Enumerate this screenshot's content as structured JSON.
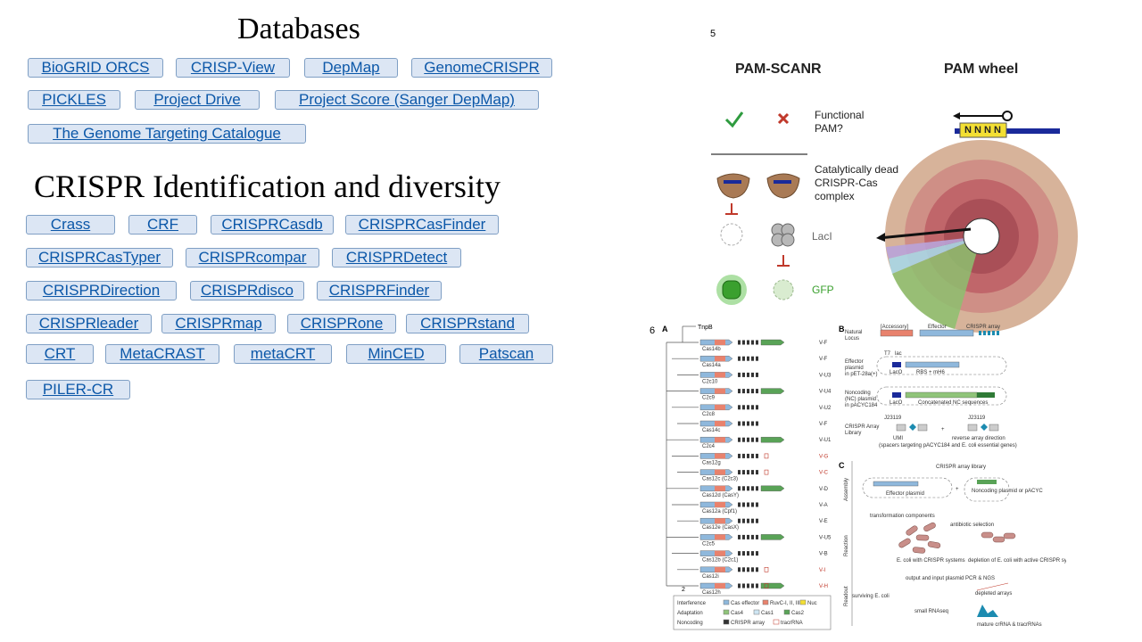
{
  "databases": {
    "title": "Databases",
    "links": [
      "BioGRID ORCS",
      "CRISP-View",
      "DepMap",
      "GenomeCRISPR",
      "PICKLES",
      "Project Drive",
      "Project Score (Sanger DepMap)",
      "The Genome Targeting Catalogue"
    ]
  },
  "crispr": {
    "title": "CRISPR Identification and diversity",
    "links": [
      "Crass",
      "CRF",
      "CRISPRCasdb",
      "CRISPRCasFinder",
      "CRISPRCasTyper",
      "CRISPRcompar",
      "CRISPRDetect",
      "CRISPRDirection",
      "CRISPRdisco",
      "CRISPRFinder",
      "CRISPRleader",
      "CRISPRmap",
      "CRISPRone",
      "CRISPRstand",
      "CRT",
      "MetaCRAST",
      "metaCRT",
      "MinCED",
      "Patscan",
      "PILER-CR"
    ]
  },
  "figure5": {
    "number": "5",
    "left_title": "PAM-SCANR",
    "right_title": "PAM wheel",
    "functional": "Functional\nPAM?",
    "dead": "Catalytically dead\nCRISPR-Cas\ncomplex",
    "laci": "LacI",
    "gfp": "GFP",
    "nnnn": "N N N N",
    "colors": {
      "check": "#2e9b3f",
      "cross": "#c0392b",
      "gfp": "#3aa02e"
    }
  },
  "figure6": {
    "number": "6",
    "panel_a": "A",
    "panel_b": "B",
    "panel_c": "C",
    "top_label": "TnpB",
    "scale": "2",
    "rows": [
      {
        "gene": "Cas14b",
        "type": "V-F",
        "red": false
      },
      {
        "gene": "Cas14a",
        "type": "V-F",
        "red": false
      },
      {
        "gene": "C2c10",
        "type": "V-U3",
        "red": false
      },
      {
        "gene": "C2c9",
        "type": "V-U4",
        "red": false
      },
      {
        "gene": "C2c8",
        "type": "V-U2",
        "red": false
      },
      {
        "gene": "Cas14c",
        "type": "V-F",
        "red": false
      },
      {
        "gene": "C2c4",
        "type": "V-U1",
        "red": false
      },
      {
        "gene": "Cas12g",
        "type": "V-G",
        "red": true
      },
      {
        "gene": "Cas12c (C2c3)",
        "type": "V-C",
        "red": true
      },
      {
        "gene": "Cas12d (CasY)",
        "type": "V-D",
        "red": false
      },
      {
        "gene": "Cas12a (Cpf1)",
        "type": "V-A",
        "red": false
      },
      {
        "gene": "Cas12e (CasX)",
        "type": "V-E",
        "red": false
      },
      {
        "gene": "C2c5",
        "type": "V-U5",
        "red": false
      },
      {
        "gene": "Cas12b (C2c1)",
        "type": "V-B",
        "red": false
      },
      {
        "gene": "Cas12i",
        "type": "V-I",
        "red": true
      },
      {
        "gene": "Cas12h",
        "type": "V-H",
        "red": true
      }
    ],
    "legend": {
      "interference": "Interference",
      "adaptation": "Adaptation",
      "noncoding": "Noncoding",
      "items": [
        "Cas effector",
        "RuvC-I, II, III",
        "Nuc",
        "Cas4",
        "Cas1",
        "Cas2",
        "CRISPR array",
        "tracrRNA"
      ]
    },
    "b_labels": [
      "Natural\nLocus",
      "Effector\nplasmid\nin pET-28a(+)",
      "Noncoding\n(NC) plasmid\nin pACYC184",
      "CRISPR Array\nLibrary"
    ],
    "b_texts": [
      "[Accessory]",
      "Effector",
      "CRISPR array",
      "T7",
      "lac",
      "LacO",
      "RBS + mH6",
      "Concatenated NC sequences",
      "J23119",
      "UMI",
      "reverse array direction",
      "(spacers targeting pACYC184 and E. coli essential genes)"
    ],
    "c_side": [
      "Assembly",
      "Reaction",
      "Readout"
    ],
    "c_texts": [
      "CRISPR array library",
      "Effector plasmid",
      "Noncoding plasmid or pACYC",
      "transformation components",
      "antibiotic selection",
      "E. coli with CRISPR systems",
      "depletion of E. coli with active CRISPR systems",
      "surviving E. coli",
      "output and input plasmid PCR & NGS",
      "depleted arrays",
      "small RNAseq",
      "mature crRNA & tracrRNAs"
    ]
  }
}
